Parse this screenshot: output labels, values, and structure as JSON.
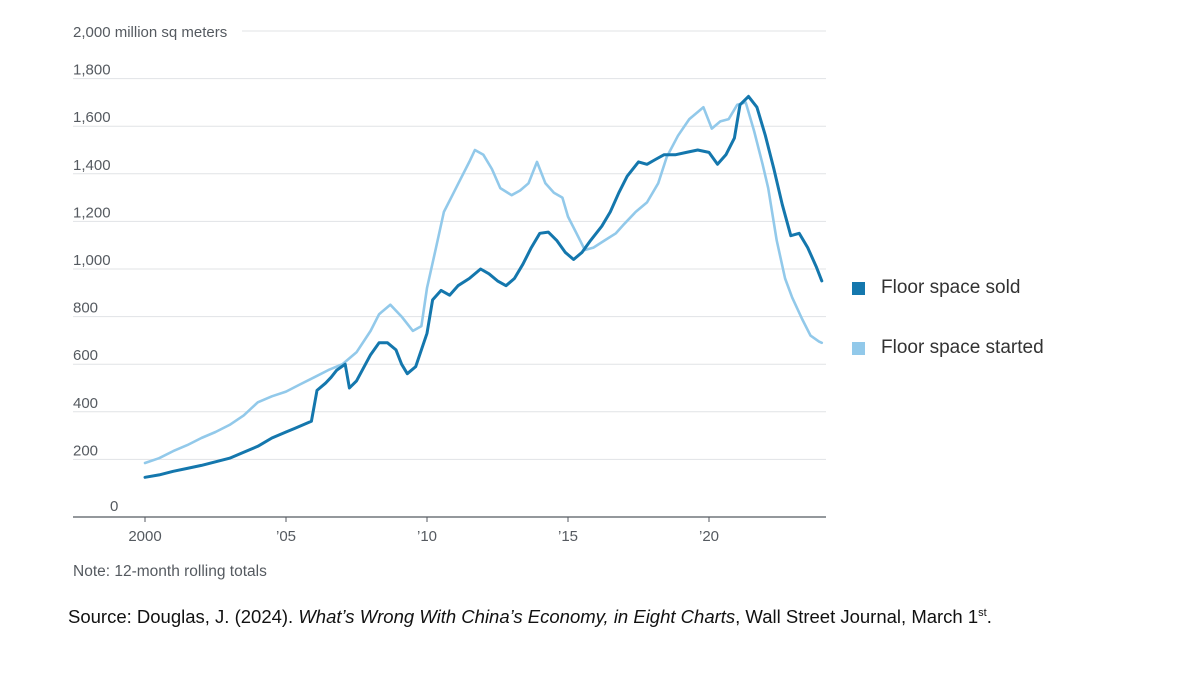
{
  "chart_data": {
    "type": "line",
    "unit_label": "2,000 million sq meters",
    "ylim": [
      0,
      2000
    ],
    "xlim": [
      2000,
      2024
    ],
    "y_ticks": [
      {
        "value": 200,
        "label": "200"
      },
      {
        "value": 400,
        "label": "400"
      },
      {
        "value": 600,
        "label": "600"
      },
      {
        "value": 800,
        "label": "800"
      },
      {
        "value": 1000,
        "label": "1,000"
      },
      {
        "value": 1200,
        "label": "1,200"
      },
      {
        "value": 1400,
        "label": "1,400"
      },
      {
        "value": 1600,
        "label": "1,600"
      },
      {
        "value": 1800,
        "label": "1,800"
      }
    ],
    "zero_label": "0",
    "x_ticks": [
      {
        "value": 2000,
        "label": "2000"
      },
      {
        "value": 2005,
        "label": "’05"
      },
      {
        "value": 2010,
        "label": "’10"
      },
      {
        "value": 2015,
        "label": "’15"
      },
      {
        "value": 2020,
        "label": "’20"
      }
    ],
    "grid": "horizontal",
    "legend_position": "right",
    "series": [
      {
        "name": "Floor space sold",
        "color": "#1477ad",
        "points": [
          [
            2000.0,
            125
          ],
          [
            2000.5,
            135
          ],
          [
            2001.0,
            150
          ],
          [
            2001.5,
            162
          ],
          [
            2002.0,
            175
          ],
          [
            2002.5,
            190
          ],
          [
            2003.0,
            205
          ],
          [
            2003.5,
            230
          ],
          [
            2004.0,
            255
          ],
          [
            2004.5,
            290
          ],
          [
            2005.0,
            315
          ],
          [
            2005.3,
            330
          ],
          [
            2005.9,
            360
          ],
          [
            2006.1,
            490
          ],
          [
            2006.4,
            520
          ],
          [
            2006.6,
            545
          ],
          [
            2006.8,
            575
          ],
          [
            2007.1,
            600
          ],
          [
            2007.25,
            500
          ],
          [
            2007.5,
            530
          ],
          [
            2008.0,
            640
          ],
          [
            2008.3,
            690
          ],
          [
            2008.6,
            690
          ],
          [
            2008.9,
            660
          ],
          [
            2009.1,
            600
          ],
          [
            2009.3,
            560
          ],
          [
            2009.6,
            590
          ],
          [
            2010.0,
            730
          ],
          [
            2010.2,
            870
          ],
          [
            2010.5,
            910
          ],
          [
            2010.8,
            890
          ],
          [
            2011.1,
            930
          ],
          [
            2011.5,
            960
          ],
          [
            2011.9,
            1000
          ],
          [
            2012.2,
            980
          ],
          [
            2012.5,
            950
          ],
          [
            2012.8,
            930
          ],
          [
            2013.1,
            960
          ],
          [
            2013.4,
            1020
          ],
          [
            2013.7,
            1090
          ],
          [
            2014.0,
            1150
          ],
          [
            2014.3,
            1155
          ],
          [
            2014.6,
            1120
          ],
          [
            2014.9,
            1070
          ],
          [
            2015.2,
            1040
          ],
          [
            2015.5,
            1070
          ],
          [
            2015.8,
            1120
          ],
          [
            2016.2,
            1180
          ],
          [
            2016.5,
            1240
          ],
          [
            2016.8,
            1320
          ],
          [
            2017.1,
            1390
          ],
          [
            2017.5,
            1450
          ],
          [
            2017.8,
            1440
          ],
          [
            2018.1,
            1460
          ],
          [
            2018.4,
            1480
          ],
          [
            2018.8,
            1480
          ],
          [
            2019.2,
            1490
          ],
          [
            2019.6,
            1500
          ],
          [
            2020.0,
            1490
          ],
          [
            2020.3,
            1440
          ],
          [
            2020.6,
            1480
          ],
          [
            2020.9,
            1550
          ],
          [
            2021.1,
            1690
          ],
          [
            2021.4,
            1725
          ],
          [
            2021.7,
            1680
          ],
          [
            2022.0,
            1560
          ],
          [
            2022.3,
            1420
          ],
          [
            2022.6,
            1270
          ],
          [
            2022.9,
            1140
          ],
          [
            2023.2,
            1150
          ],
          [
            2023.5,
            1090
          ],
          [
            2023.8,
            1010
          ],
          [
            2024.0,
            950
          ]
        ]
      },
      {
        "name": "Floor space started",
        "color": "#92c9ea",
        "points": [
          [
            2000.0,
            185
          ],
          [
            2000.5,
            205
          ],
          [
            2001.0,
            235
          ],
          [
            2001.5,
            260
          ],
          [
            2002.0,
            290
          ],
          [
            2002.5,
            315
          ],
          [
            2003.0,
            345
          ],
          [
            2003.5,
            385
          ],
          [
            2004.0,
            440
          ],
          [
            2004.5,
            465
          ],
          [
            2005.0,
            485
          ],
          [
            2005.5,
            515
          ],
          [
            2006.0,
            545
          ],
          [
            2006.5,
            575
          ],
          [
            2007.0,
            600
          ],
          [
            2007.5,
            650
          ],
          [
            2008.0,
            740
          ],
          [
            2008.3,
            810
          ],
          [
            2008.7,
            850
          ],
          [
            2009.1,
            800
          ],
          [
            2009.5,
            740
          ],
          [
            2009.8,
            760
          ],
          [
            2010.0,
            920
          ],
          [
            2010.3,
            1080
          ],
          [
            2010.6,
            1240
          ],
          [
            2010.9,
            1310
          ],
          [
            2011.2,
            1380
          ],
          [
            2011.5,
            1450
          ],
          [
            2011.7,
            1500
          ],
          [
            2012.0,
            1480
          ],
          [
            2012.3,
            1420
          ],
          [
            2012.6,
            1340
          ],
          [
            2013.0,
            1310
          ],
          [
            2013.3,
            1330
          ],
          [
            2013.6,
            1360
          ],
          [
            2013.9,
            1450
          ],
          [
            2014.2,
            1360
          ],
          [
            2014.5,
            1320
          ],
          [
            2014.8,
            1300
          ],
          [
            2015.0,
            1220
          ],
          [
            2015.3,
            1150
          ],
          [
            2015.6,
            1080
          ],
          [
            2015.9,
            1090
          ],
          [
            2016.3,
            1120
          ],
          [
            2016.7,
            1150
          ],
          [
            2017.0,
            1190
          ],
          [
            2017.4,
            1240
          ],
          [
            2017.8,
            1280
          ],
          [
            2018.2,
            1360
          ],
          [
            2018.5,
            1470
          ],
          [
            2018.9,
            1560
          ],
          [
            2019.3,
            1630
          ],
          [
            2019.8,
            1680
          ],
          [
            2020.1,
            1590
          ],
          [
            2020.4,
            1620
          ],
          [
            2020.7,
            1630
          ],
          [
            2021.0,
            1690
          ],
          [
            2021.3,
            1700
          ],
          [
            2021.6,
            1580
          ],
          [
            2021.9,
            1440
          ],
          [
            2022.1,
            1340
          ],
          [
            2022.4,
            1120
          ],
          [
            2022.7,
            960
          ],
          [
            2022.95,
            880
          ],
          [
            2023.3,
            790
          ],
          [
            2023.6,
            720
          ],
          [
            2023.9,
            695
          ],
          [
            2024.0,
            690
          ]
        ]
      }
    ],
    "note": "Note: 12-month rolling totals"
  },
  "source": {
    "before": "Source: Douglas, J. (2024). ",
    "title": "What’s Wrong With China’s Economy, in Eight Charts",
    "after": ", Wall Street Journal, March 1",
    "superscript": "st",
    "end": "."
  }
}
